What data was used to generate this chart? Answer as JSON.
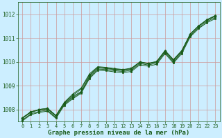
{
  "title": "Graphe pression niveau de la mer (hPa)",
  "background_color": "#cceeff",
  "grid_color": "#cc9999",
  "line_color": "#1a5c1a",
  "text_color": "#1a5c1a",
  "xlim": [
    -0.5,
    23.5
  ],
  "ylim": [
    1007.5,
    1012.5
  ],
  "yticks": [
    1008,
    1009,
    1010,
    1011,
    1012
  ],
  "xticks": [
    0,
    1,
    2,
    3,
    4,
    5,
    6,
    7,
    8,
    9,
    10,
    11,
    12,
    13,
    14,
    15,
    16,
    17,
    18,
    19,
    20,
    21,
    22,
    23
  ],
  "series": [
    [
      1007.65,
      1007.9,
      1008.0,
      1008.05,
      1007.75,
      1008.25,
      1008.55,
      1008.75,
      1009.4,
      1009.75,
      1009.72,
      1009.68,
      1009.65,
      1009.7,
      1009.98,
      1009.92,
      1010.0,
      1010.45,
      1010.05,
      1010.45,
      1011.15,
      1011.5,
      1011.75,
      1011.92
    ],
    [
      1007.65,
      1007.9,
      1008.0,
      1008.05,
      1007.75,
      1008.3,
      1008.65,
      1008.9,
      1009.5,
      1009.8,
      1009.77,
      1009.72,
      1009.68,
      1009.74,
      1010.0,
      1009.94,
      1010.02,
      1010.48,
      1010.1,
      1010.48,
      1011.18,
      1011.52,
      1011.78,
      1011.95
    ],
    [
      1007.62,
      1007.88,
      1007.98,
      1008.02,
      1007.72,
      1008.28,
      1008.6,
      1008.85,
      1009.45,
      1009.77,
      1009.74,
      1009.7,
      1009.66,
      1009.72,
      1009.99,
      1009.93,
      1010.01,
      1010.46,
      1010.08,
      1010.46,
      1011.16,
      1011.5,
      1011.76,
      1011.93
    ],
    [
      1007.55,
      1007.82,
      1007.92,
      1007.97,
      1007.67,
      1008.22,
      1008.5,
      1008.72,
      1009.35,
      1009.7,
      1009.68,
      1009.63,
      1009.6,
      1009.65,
      1009.93,
      1009.87,
      1009.95,
      1010.4,
      1010.0,
      1010.4,
      1011.1,
      1011.44,
      1011.7,
      1011.87
    ],
    [
      1007.52,
      1007.78,
      1007.88,
      1007.93,
      1007.63,
      1008.18,
      1008.45,
      1008.68,
      1009.3,
      1009.65,
      1009.63,
      1009.58,
      1009.55,
      1009.6,
      1009.88,
      1009.82,
      1009.9,
      1010.35,
      1009.95,
      1010.35,
      1011.05,
      1011.4,
      1011.65,
      1011.82
    ]
  ]
}
